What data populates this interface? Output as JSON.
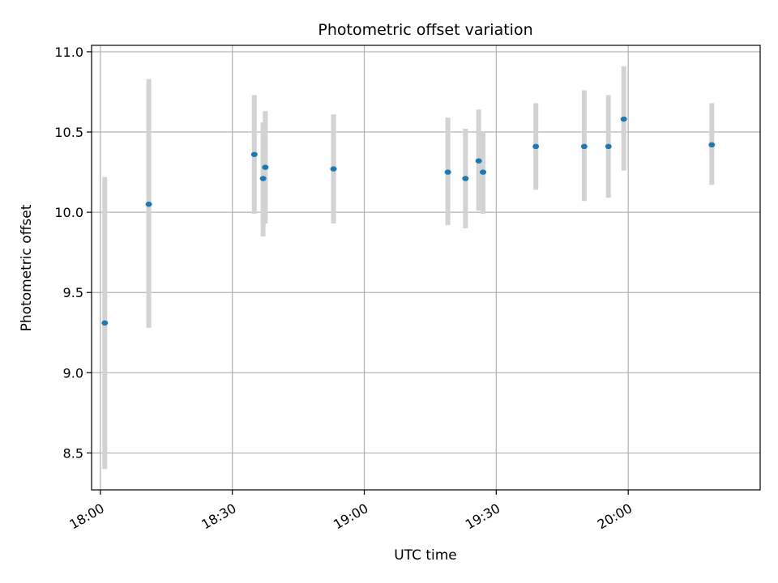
{
  "chart_data": {
    "type": "scatter",
    "title": "Photometric offset variation",
    "xlabel": "UTC time",
    "ylabel": "Photometric offset",
    "x_axis_type": "time",
    "xlim": [
      "17:58",
      "20:30"
    ],
    "ylim": [
      8.27,
      11.04
    ],
    "grid": true,
    "x_ticks": [
      "18:00",
      "18:30",
      "19:00",
      "19:30",
      "20:00"
    ],
    "y_ticks": [
      8.5,
      9.0,
      9.5,
      10.0,
      10.5,
      11.0
    ],
    "y_tick_labels": [
      "8.5",
      "9.0",
      "9.5",
      "10.0",
      "10.5",
      "11.0"
    ],
    "point_color": "#1f77b4",
    "errorbar_color": "#d3d3d3",
    "points": [
      {
        "x": "18:01",
        "y": 9.31,
        "ylow": 8.4,
        "yhigh": 10.22
      },
      {
        "x": "18:11",
        "y": 10.05,
        "ylow": 9.28,
        "yhigh": 10.83
      },
      {
        "x": "18:35",
        "y": 10.36,
        "ylow": 9.99,
        "yhigh": 10.73
      },
      {
        "x": "18:37",
        "y": 10.21,
        "ylow": 9.85,
        "yhigh": 10.56
      },
      {
        "x": "18:37.5",
        "y": 10.28,
        "ylow": 9.93,
        "yhigh": 10.63
      },
      {
        "x": "18:53",
        "y": 10.27,
        "ylow": 9.93,
        "yhigh": 10.61
      },
      {
        "x": "19:19",
        "y": 10.25,
        "ylow": 9.92,
        "yhigh": 10.59
      },
      {
        "x": "19:23",
        "y": 10.21,
        "ylow": 9.9,
        "yhigh": 10.52
      },
      {
        "x": "19:26",
        "y": 10.32,
        "ylow": 10.01,
        "yhigh": 10.64
      },
      {
        "x": "19:27",
        "y": 10.25,
        "ylow": 9.99,
        "yhigh": 10.5
      },
      {
        "x": "19:39",
        "y": 10.41,
        "ylow": 10.14,
        "yhigh": 10.68
      },
      {
        "x": "19:50",
        "y": 10.41,
        "ylow": 10.07,
        "yhigh": 10.76
      },
      {
        "x": "19:55.5",
        "y": 10.41,
        "ylow": 10.09,
        "yhigh": 10.73
      },
      {
        "x": "19:59",
        "y": 10.58,
        "ylow": 10.26,
        "yhigh": 10.91
      },
      {
        "x": "20:19",
        "y": 10.42,
        "ylow": 10.17,
        "yhigh": 10.68
      }
    ]
  }
}
